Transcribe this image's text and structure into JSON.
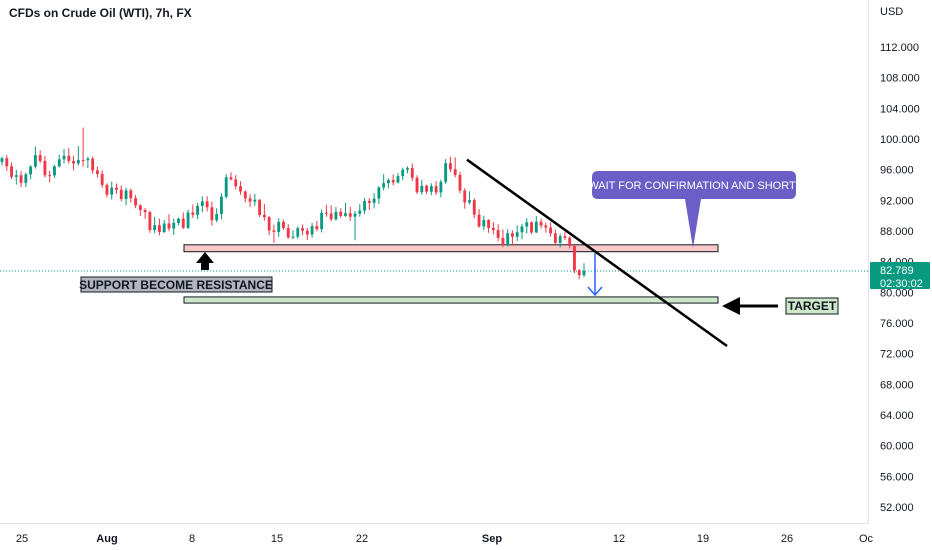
{
  "header": {
    "title": "CFDs on Crude Oil (WTI), 7h, FX",
    "currency": "USD"
  },
  "current_price": {
    "value": "82.789",
    "countdown": "02:30:02",
    "color": "#089981"
  },
  "annotations": {
    "support_label": "SUPPORT BECOME RESISTANCE",
    "target_label": "TARGET",
    "callout_text": "WAIT FOR CONFIRMATION AND SHORT"
  },
  "colors": {
    "up": "#089981",
    "down": "#f23645",
    "resistance_zone": "#f8c9c9",
    "target_zone": "#cde8c9",
    "callout": "#6b5fc7",
    "trendline": "#000000",
    "arrow_blue": "#2962ff"
  },
  "chart_data": {
    "type": "candlestick",
    "title": "CFDs on Crude Oil (WTI), 7h, FX",
    "ylabel": "USD",
    "ylim": [
      49,
      118
    ],
    "y_ticks": [
      "112.000",
      "108.000",
      "104.000",
      "100.000",
      "96.000",
      "92.000",
      "88.000",
      "84.000",
      "80.000",
      "76.000",
      "72.000",
      "68.000",
      "64.000",
      "60.000",
      "56.000",
      "52.000"
    ],
    "x_ticks": [
      "25",
      "Aug",
      "8",
      "15",
      "22",
      "Sep",
      "12",
      "19",
      "26",
      "Oc"
    ],
    "grid": false,
    "zones": {
      "resistance": [
        85.3,
        86.2
      ],
      "target": [
        78.6,
        79.4
      ]
    },
    "trendline": {
      "start_price": 97.3,
      "end_price": 73.0
    },
    "ohlc": [
      [
        97.01,
        97.7,
        96.54,
        97.49
      ],
      [
        97.49,
        97.91,
        95.83,
        96.44
      ],
      [
        96.44,
        96.94,
        94.75,
        95.06
      ],
      [
        95.06,
        95.99,
        94.06,
        95.28
      ],
      [
        95.28,
        95.8,
        93.74,
        94.29
      ],
      [
        94.29,
        95.6,
        93.72,
        95.39
      ],
      [
        95.39,
        96.58,
        94.76,
        96.4
      ],
      [
        96.4,
        99.02,
        96.14,
        97.9
      ],
      [
        97.9,
        98.53,
        96.87,
        97.14
      ],
      [
        97.14,
        97.8,
        94.99,
        95.28
      ],
      [
        95.28,
        95.85,
        94.33,
        95.25
      ],
      [
        95.25,
        96.62,
        94.92,
        96.43
      ],
      [
        96.43,
        97.96,
        96.3,
        97.35
      ],
      [
        97.35,
        98.68,
        96.81,
        97.81
      ],
      [
        97.81,
        98.81,
        96.78,
        97.14
      ],
      [
        97.14,
        97.81,
        95.91,
        96.81
      ],
      [
        96.81,
        99.07,
        96.53,
        97.27
      ],
      [
        97.27,
        101.5,
        96.4,
        97.23
      ],
      [
        97.23,
        97.69,
        96.23,
        97.44
      ],
      [
        97.44,
        97.68,
        95.45,
        95.91
      ],
      [
        95.91,
        96.41,
        94.98,
        95.44
      ],
      [
        95.44,
        95.91,
        93.64,
        94.02
      ],
      [
        94.02,
        94.21,
        92.38,
        92.74
      ],
      [
        92.74,
        94.45,
        92.1,
        93.65
      ],
      [
        93.65,
        94.19,
        92.83,
        93.37
      ],
      [
        93.37,
        93.95,
        91.85,
        92.18
      ],
      [
        92.18,
        93.67,
        91.36,
        93.3
      ],
      [
        93.3,
        93.56,
        91.7,
        92.28
      ],
      [
        92.28,
        92.69,
        90.97,
        91.34
      ],
      [
        91.34,
        91.51,
        89.97,
        90.73
      ],
      [
        90.73,
        90.98,
        89.59,
        90.46
      ],
      [
        90.46,
        90.63,
        87.76,
        88.12
      ],
      [
        88.12,
        89.84,
        87.7,
        88.76
      ],
      [
        88.76,
        89.62,
        87.42,
        87.87
      ],
      [
        87.87,
        89.43,
        87.72,
        88.98
      ],
      [
        88.98,
        90.18,
        87.97,
        88.32
      ],
      [
        88.32,
        89.63,
        87.49,
        89.05
      ],
      [
        89.05,
        89.74,
        88.71,
        89.61
      ],
      [
        89.61,
        90.4,
        88.25,
        88.41
      ],
      [
        88.41,
        90.77,
        88.25,
        90.4
      ],
      [
        90.4,
        91.46,
        89.71,
        90.11
      ],
      [
        90.11,
        91.66,
        89.57,
        91.27
      ],
      [
        91.27,
        92.52,
        90.45,
        91.87
      ],
      [
        91.87,
        92.53,
        90.54,
        91.1
      ],
      [
        91.1,
        91.82,
        88.7,
        89.4
      ],
      [
        89.4,
        90.96,
        89.15,
        90.22
      ],
      [
        90.22,
        92.93,
        89.55,
        92.47
      ],
      [
        92.47,
        95.39,
        92.2,
        95.01
      ],
      [
        95.01,
        95.66,
        94.58,
        94.73
      ],
      [
        94.73,
        95.29,
        93.45,
        93.85
      ],
      [
        93.85,
        94.49,
        92.72,
        93.16
      ],
      [
        93.16,
        93.29,
        91.74,
        92.25
      ],
      [
        92.25,
        92.8,
        91.11,
        91.83
      ],
      [
        91.83,
        92.82,
        91.29,
        92.08
      ],
      [
        92.08,
        92.15,
        89.82,
        90.1
      ],
      [
        90.1,
        91.52,
        89.36,
        89.81
      ],
      [
        89.81,
        89.96,
        87.47,
        88.06
      ],
      [
        88.06,
        88.82,
        86.45,
        87.88
      ],
      [
        87.88,
        89.66,
        87.25,
        89.19
      ],
      [
        89.19,
        89.48,
        88.14,
        88.39
      ],
      [
        88.39,
        88.89,
        86.97,
        87.16
      ],
      [
        87.16,
        88.09,
        86.92,
        87.27
      ],
      [
        87.27,
        88.62,
        86.99,
        88.37
      ],
      [
        88.37,
        88.85,
        87.48,
        88.04
      ],
      [
        88.04,
        88.43,
        86.83,
        87.55
      ],
      [
        87.55,
        89.05,
        87.13,
        88.64
      ],
      [
        88.64,
        89.33,
        87.95,
        88.24
      ],
      [
        88.24,
        90.79,
        87.81,
        90.38
      ],
      [
        90.38,
        91.43,
        89.86,
        90.29
      ],
      [
        90.29,
        91.36,
        89.28,
        89.53
      ],
      [
        89.53,
        91.13,
        89.34,
        90.51
      ],
      [
        90.51,
        90.97,
        89.68,
        89.97
      ],
      [
        89.97,
        91.69,
        89.82,
        90.32
      ],
      [
        90.32,
        91.15,
        89.31,
        89.86
      ],
      [
        89.86,
        90.61,
        86.79,
        90.26
      ],
      [
        90.26,
        91.5,
        89.87,
        90.66
      ],
      [
        90.66,
        92.31,
        90.22,
        91.92
      ],
      [
        91.92,
        92.3,
        90.74,
        91.67
      ],
      [
        91.67,
        92.94,
        90.96,
        92.23
      ],
      [
        92.23,
        93.86,
        91.53,
        93.68
      ],
      [
        93.68,
        95.41,
        93.29,
        94.24
      ],
      [
        94.24,
        94.89,
        93.57,
        94.65
      ],
      [
        94.65,
        95.38,
        93.96,
        94.33
      ],
      [
        94.33,
        95.57,
        94.2,
        95.16
      ],
      [
        95.16,
        96.25,
        94.63,
        95.99
      ],
      [
        95.99,
        96.43,
        95.52,
        96.21
      ],
      [
        96.21,
        96.8,
        94.51,
        94.94
      ],
      [
        94.94,
        95.27,
        92.8,
        93.06
      ],
      [
        93.06,
        94.69,
        92.74,
        93.91
      ],
      [
        93.91,
        94.04,
        92.82,
        93.13
      ],
      [
        93.13,
        94.23,
        92.66,
        93.86
      ],
      [
        93.86,
        94.48,
        92.7,
        93.03
      ],
      [
        93.03,
        94.71,
        92.37,
        94.41
      ],
      [
        94.41,
        97.37,
        94.14,
        96.84
      ],
      [
        96.84,
        97.7,
        95.68,
        96.06
      ],
      [
        96.06,
        97.61,
        94.99,
        95.31
      ],
      [
        95.31,
        95.72,
        92.91,
        93.27
      ],
      [
        93.27,
        93.58,
        90.91,
        91.74
      ],
      [
        91.74,
        93.18,
        91.48,
        92.03
      ],
      [
        92.03,
        92.27,
        89.7,
        90.13
      ],
      [
        90.13,
        90.86,
        88.42,
        88.59
      ],
      [
        88.59,
        89.98,
        88.08,
        89.44
      ],
      [
        89.44,
        89.54,
        87.76,
        88.4
      ],
      [
        88.4,
        89.17,
        87.57,
        88.12
      ],
      [
        88.12,
        88.88,
        86.64,
        87.09
      ],
      [
        87.09,
        88.2,
        85.88,
        86.16
      ],
      [
        86.16,
        88.23,
        85.97,
        87.71
      ],
      [
        87.71,
        88.08,
        86.13,
        87.24
      ],
      [
        87.24,
        88.75,
        86.71,
        87.84
      ],
      [
        87.84,
        88.94,
        86.92,
        88.59
      ],
      [
        88.59,
        89.67,
        87.69,
        89.14
      ],
      [
        89.14,
        89.26,
        87.59,
        87.81
      ],
      [
        87.81,
        89.95,
        87.74,
        89.2
      ],
      [
        89.2,
        89.62,
        88.33,
        88.72
      ],
      [
        88.72,
        89.07,
        87.79,
        88.45
      ],
      [
        88.45,
        89.15,
        87.26,
        87.69
      ],
      [
        87.69,
        88.2,
        86.17,
        86.45
      ],
      [
        86.45,
        87.66,
        85.83,
        87.32
      ],
      [
        87.32,
        87.86,
        86.84,
        87.12
      ],
      [
        87.12,
        87.32,
        85.71,
        86.05
      ],
      [
        86.05,
        86.21,
        82.51,
        82.89
      ],
      [
        82.89,
        83.03,
        81.71,
        82.23
      ],
      [
        82.23,
        83.79,
        81.96,
        82.79
      ]
    ]
  }
}
